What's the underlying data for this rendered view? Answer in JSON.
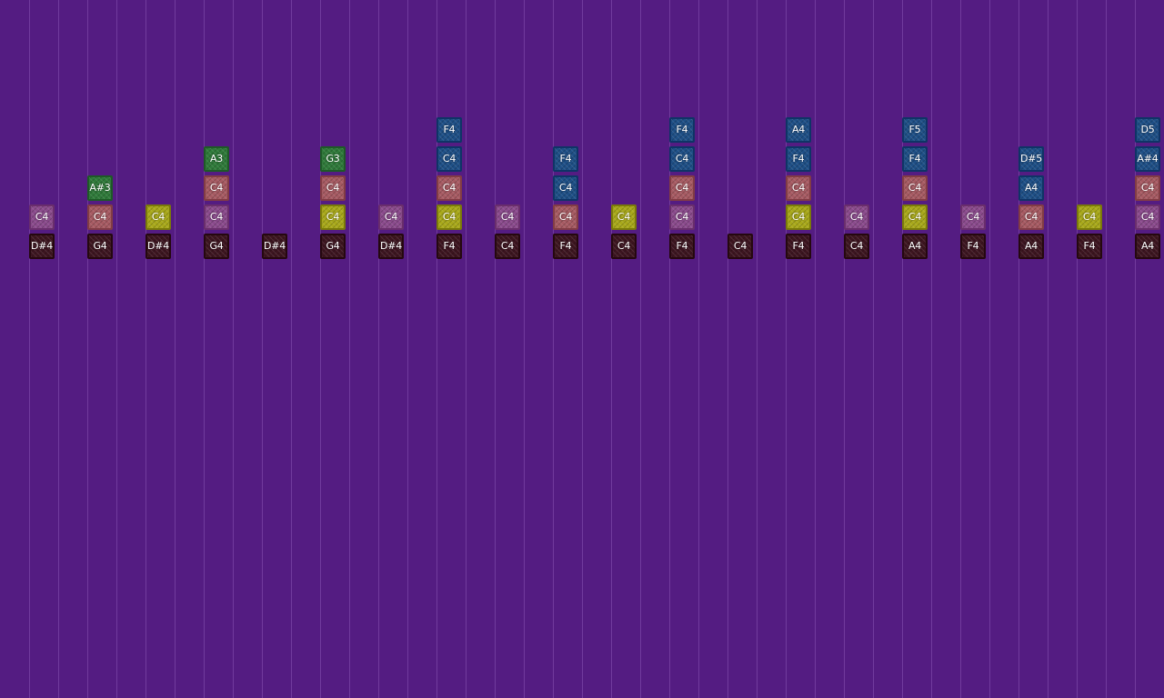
{
  "instrument_colors": {
    "bass": {
      "fill": "#3d1520",
      "border": "#25080f"
    },
    "mauve": {
      "fill": "#8a4a8c",
      "border": "#6a2e6c"
    },
    "olive": {
      "fill": "#a8a81a",
      "border": "#7a7a08"
    },
    "salmon": {
      "fill": "#a65a62",
      "border": "#823c44"
    },
    "green": {
      "fill": "#2f7a3a",
      "border": "#1e5a27"
    },
    "blue": {
      "fill": "#1e4f86",
      "border": "#0f3466"
    }
  },
  "columns": [
    {
      "notes": [
        {
          "label": "C4",
          "type": "mauve"
        },
        {
          "label": "D#4",
          "type": "bass"
        }
      ]
    },
    {
      "notes": []
    },
    {
      "notes": [
        {
          "label": "A#3",
          "type": "green"
        },
        {
          "label": "C4",
          "type": "salmon"
        },
        {
          "label": "G4",
          "type": "bass"
        }
      ]
    },
    {
      "notes": []
    },
    {
      "notes": [
        {
          "label": "C4",
          "type": "olive"
        },
        {
          "label": "D#4",
          "type": "bass"
        }
      ]
    },
    {
      "notes": []
    },
    {
      "notes": [
        {
          "label": "A3",
          "type": "green"
        },
        {
          "label": "C4",
          "type": "salmon"
        },
        {
          "label": "C4",
          "type": "mauve"
        },
        {
          "label": "G4",
          "type": "bass"
        }
      ]
    },
    {
      "notes": []
    },
    {
      "notes": [
        {
          "label": "D#4",
          "type": "bass"
        }
      ]
    },
    {
      "notes": []
    },
    {
      "notes": [
        {
          "label": "G3",
          "type": "green"
        },
        {
          "label": "C4",
          "type": "salmon"
        },
        {
          "label": "C4",
          "type": "olive"
        },
        {
          "label": "G4",
          "type": "bass"
        }
      ]
    },
    {
      "notes": []
    },
    {
      "notes": [
        {
          "label": "C4",
          "type": "mauve"
        },
        {
          "label": "D#4",
          "type": "bass"
        }
      ]
    },
    {
      "notes": []
    },
    {
      "notes": [
        {
          "label": "F4",
          "type": "blue"
        },
        {
          "label": "C4",
          "type": "blue"
        },
        {
          "label": "C4",
          "type": "salmon"
        },
        {
          "label": "C4",
          "type": "olive"
        },
        {
          "label": "F4",
          "type": "bass"
        }
      ]
    },
    {
      "notes": []
    },
    {
      "notes": [
        {
          "label": "C4",
          "type": "mauve"
        },
        {
          "label": "C4",
          "type": "bass"
        }
      ]
    },
    {
      "notes": []
    },
    {
      "notes": [
        {
          "label": "F4",
          "type": "blue"
        },
        {
          "label": "C4",
          "type": "blue"
        },
        {
          "label": "C4",
          "type": "salmon"
        },
        {
          "label": "F4",
          "type": "bass"
        }
      ]
    },
    {
      "notes": []
    },
    {
      "notes": [
        {
          "label": "C4",
          "type": "olive"
        },
        {
          "label": "C4",
          "type": "bass"
        }
      ]
    },
    {
      "notes": []
    },
    {
      "notes": [
        {
          "label": "F4",
          "type": "blue"
        },
        {
          "label": "C4",
          "type": "blue"
        },
        {
          "label": "C4",
          "type": "salmon"
        },
        {
          "label": "C4",
          "type": "mauve"
        },
        {
          "label": "F4",
          "type": "bass"
        }
      ]
    },
    {
      "notes": []
    },
    {
      "notes": [
        {
          "label": "C4",
          "type": "bass"
        }
      ]
    },
    {
      "notes": []
    },
    {
      "notes": [
        {
          "label": "A4",
          "type": "blue"
        },
        {
          "label": "F4",
          "type": "blue"
        },
        {
          "label": "C4",
          "type": "salmon"
        },
        {
          "label": "C4",
          "type": "olive"
        },
        {
          "label": "F4",
          "type": "bass"
        }
      ]
    },
    {
      "notes": []
    },
    {
      "notes": [
        {
          "label": "C4",
          "type": "mauve"
        },
        {
          "label": "C4",
          "type": "bass"
        }
      ]
    },
    {
      "notes": []
    },
    {
      "notes": [
        {
          "label": "F5",
          "type": "blue"
        },
        {
          "label": "F4",
          "type": "blue"
        },
        {
          "label": "C4",
          "type": "salmon"
        },
        {
          "label": "C4",
          "type": "olive"
        },
        {
          "label": "A4",
          "type": "bass"
        }
      ]
    },
    {
      "notes": []
    },
    {
      "notes": [
        {
          "label": "C4",
          "type": "mauve"
        },
        {
          "label": "F4",
          "type": "bass"
        }
      ]
    },
    {
      "notes": []
    },
    {
      "notes": [
        {
          "label": "D#5",
          "type": "blue"
        },
        {
          "label": "A4",
          "type": "blue"
        },
        {
          "label": "C4",
          "type": "salmon"
        },
        {
          "label": "A4",
          "type": "bass"
        }
      ]
    },
    {
      "notes": []
    },
    {
      "notes": [
        {
          "label": "C4",
          "type": "olive"
        },
        {
          "label": "F4",
          "type": "bass"
        }
      ]
    },
    {
      "notes": []
    },
    {
      "notes": [
        {
          "label": "D5",
          "type": "blue"
        },
        {
          "label": "A#4",
          "type": "blue"
        },
        {
          "label": "C4",
          "type": "salmon"
        },
        {
          "label": "C4",
          "type": "mauve"
        },
        {
          "label": "A4",
          "type": "bass"
        }
      ]
    }
  ]
}
